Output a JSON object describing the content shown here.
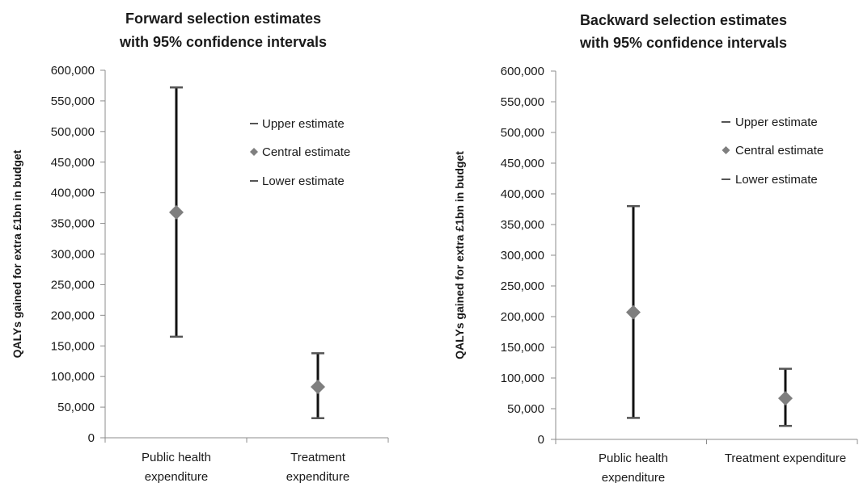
{
  "chart_data": [
    {
      "type": "scatter",
      "title_lines": [
        "Forward selection estimates",
        "with 95% confidence intervals"
      ],
      "ylabel": "QALYs gained for extra £1bn in budget",
      "ylim": [
        0,
        600000
      ],
      "yticks": [
        0,
        50000,
        100000,
        150000,
        200000,
        250000,
        300000,
        350000,
        400000,
        450000,
        500000,
        550000,
        600000
      ],
      "ytick_labels": [
        "0",
        "50,000",
        "100,000",
        "150,000",
        "200,000",
        "250,000",
        "300,000",
        "350,000",
        "400,000",
        "450,000",
        "500,000",
        "550,000",
        "600,000"
      ],
      "categories": [
        {
          "lines": [
            "Public health",
            "expenditure"
          ]
        },
        {
          "lines": [
            "Treatment",
            "expenditure"
          ]
        }
      ],
      "series": [
        {
          "name": "Upper estimate",
          "values": [
            572000,
            138000
          ]
        },
        {
          "name": "Central estimate",
          "values": [
            368000,
            83000
          ]
        },
        {
          "name": "Lower estimate",
          "values": [
            165000,
            32000
          ]
        }
      ],
      "legend_position": "upper-right",
      "grid": false
    },
    {
      "type": "scatter",
      "title_lines": [
        "Backward selection estimates",
        "with 95% confidence intervals"
      ],
      "ylabel": "QALYs gained for extra £1bn in budget",
      "ylim": [
        0,
        600000
      ],
      "yticks": [
        0,
        50000,
        100000,
        150000,
        200000,
        250000,
        300000,
        350000,
        400000,
        450000,
        500000,
        550000,
        600000
      ],
      "ytick_labels": [
        "0",
        "50,000",
        "100,000",
        "150,000",
        "200,000",
        "250,000",
        "300,000",
        "350,000",
        "400,000",
        "450,000",
        "500,000",
        "550,000",
        "600,000"
      ],
      "categories": [
        {
          "lines": [
            "Public health",
            "expenditure"
          ]
        },
        {
          "lines": [
            "Treatment expenditure"
          ]
        }
      ],
      "series": [
        {
          "name": "Upper estimate",
          "values": [
            380000,
            115000
          ]
        },
        {
          "name": "Central estimate",
          "values": [
            207000,
            67000
          ]
        },
        {
          "name": "Lower estimate",
          "values": [
            35000,
            22000
          ]
        }
      ],
      "legend_position": "upper-right",
      "grid": false
    }
  ],
  "colors": {
    "marker": "#7f7f7f",
    "error_bar": "#111111",
    "cap": "#555555",
    "axis": "#8c8c8c",
    "text": "#1a1a1a"
  }
}
